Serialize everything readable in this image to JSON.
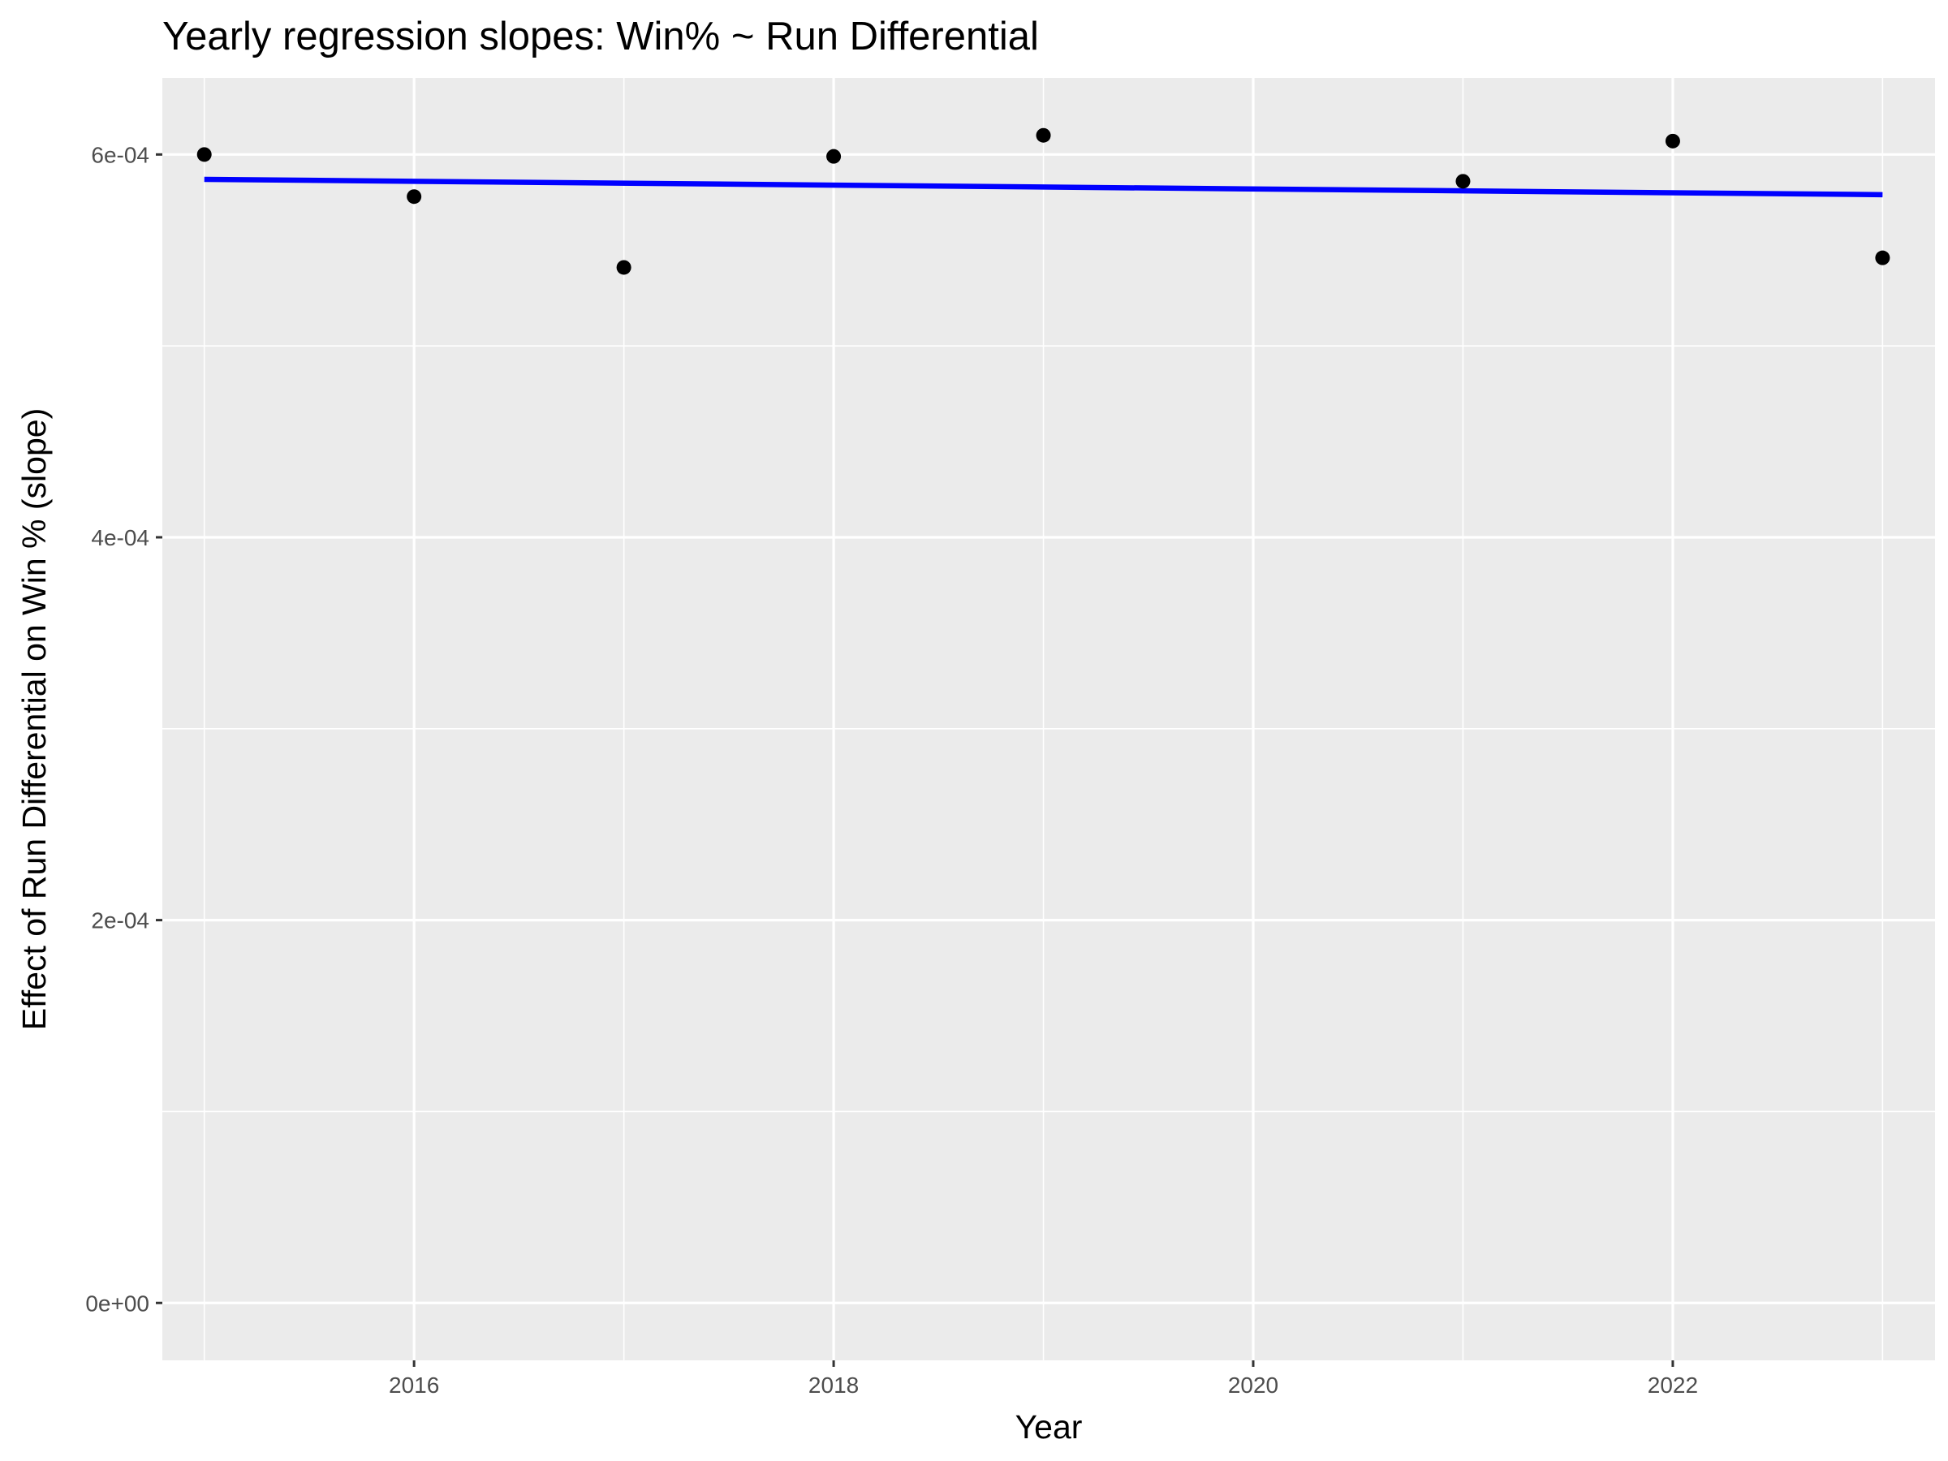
{
  "chart_data": {
    "type": "scatter",
    "title": "Yearly regression slopes: Win% ~ Run Differential",
    "xlabel": "Year",
    "ylabel": "Effect of Run Differential on Win % (slope)",
    "xlim": [
      2014.8,
      2023.25
    ],
    "ylim": [
      -3e-05,
      0.00064
    ],
    "x_ticks": [
      2016,
      2018,
      2020,
      2022
    ],
    "x_tick_labels": [
      "2016",
      "2018",
      "2020",
      "2022"
    ],
    "y_ticks": [
      0,
      0.0002,
      0.0004,
      0.0006
    ],
    "y_tick_labels": [
      "0e+00",
      "2e-04",
      "4e-04",
      "6e-04"
    ],
    "grid": true,
    "series": [
      {
        "kind": "points",
        "color": "#000000",
        "x": [
          2015,
          2016,
          2017,
          2018,
          2019,
          2021,
          2022,
          2023
        ],
        "y": [
          0.0006,
          0.000578,
          0.000541,
          0.000599,
          0.00061,
          0.000586,
          0.000607,
          0.000546
        ]
      },
      {
        "kind": "trend-line",
        "color": "#0000ff",
        "x": [
          2015,
          2023
        ],
        "y": [
          0.000587,
          0.000579
        ]
      }
    ]
  }
}
